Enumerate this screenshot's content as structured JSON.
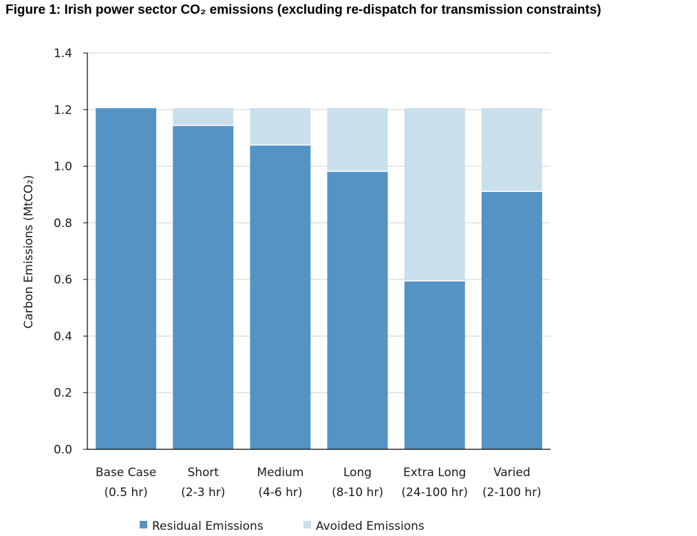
{
  "title": "Figure 1: Irish power sector CO₂ emissions (excluding re-dispatch for transmission constraints)",
  "colors": {
    "residual": "#5693c5",
    "avoided": "#c9dfec",
    "grid": "#d0d0d0",
    "axis": "#000000"
  },
  "chart_data": {
    "type": "bar",
    "stacked": true,
    "categories": [
      [
        "Base Case",
        "(0.5 hr)"
      ],
      [
        "Short",
        "(2-3 hr)"
      ],
      [
        "Medium",
        "(4-6 hr)"
      ],
      [
        "Long",
        "(8-10 hr)"
      ],
      [
        "Extra Long",
        "(24-100 hr)"
      ],
      [
        "Varied",
        "(2-100 hr)"
      ]
    ],
    "series": [
      {
        "name": "Residual Emissions",
        "values": [
          1.205,
          1.142,
          1.073,
          0.98,
          0.593,
          0.909
        ]
      },
      {
        "name": "Avoided Emissions",
        "values": [
          0.0,
          0.063,
          0.132,
          0.225,
          0.612,
          0.296
        ]
      }
    ],
    "ylabel": "Carbon Emissions (MtCO₂)",
    "ylim": [
      0,
      1.4
    ],
    "yticks": [
      "0.0",
      "0.2",
      "0.4",
      "0.6",
      "0.8",
      "1.0",
      "1.2",
      "1.4"
    ],
    "grid": true,
    "legend_position": "bottom"
  }
}
